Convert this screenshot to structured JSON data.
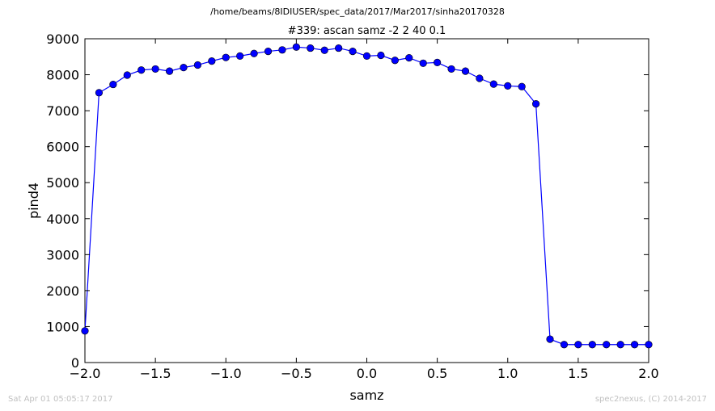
{
  "page": {
    "suptitle": "/home/beams/8IDIUSER/spec_data/2017/Mar2017/sinha20170328",
    "footer_left": "Sat Apr 01 05:05:17 2017",
    "footer_right": "spec2nexus, (C) 2014-2017"
  },
  "chart_data": {
    "type": "line",
    "title": "#339: ascan  samz -2 2  40 0.1",
    "xlabel": "samz",
    "ylabel": "pind4",
    "xlim": [
      -2.0,
      2.0
    ],
    "ylim": [
      0,
      9000
    ],
    "xticks": [
      "−2.0",
      "−1.5",
      "−1.0",
      "−0.5",
      "0.0",
      "0.5",
      "1.0",
      "1.5",
      "2.0"
    ],
    "yticks": [
      "0",
      "1000",
      "2000",
      "3000",
      "4000",
      "5000",
      "6000",
      "7000",
      "8000",
      "9000"
    ],
    "grid": false,
    "marker": "circle",
    "color": "#0000ff",
    "series": [
      {
        "x": [
          -2.0,
          -1.9,
          -1.8,
          -1.7,
          -1.6,
          -1.5,
          -1.4,
          -1.3,
          -1.2,
          -1.1,
          -1.0,
          -0.9,
          -0.8,
          -0.7,
          -0.6,
          -0.5,
          -0.4,
          -0.3,
          -0.2,
          -0.1,
          0.0,
          0.1,
          0.2,
          0.3,
          0.4,
          0.5,
          0.6,
          0.7,
          0.8,
          0.9,
          1.0,
          1.1,
          1.2,
          1.3,
          1.4,
          1.5,
          1.6,
          1.7,
          1.8,
          1.9,
          2.0
        ],
        "y": [
          880,
          7500,
          7730,
          7990,
          8130,
          8160,
          8100,
          8200,
          8270,
          8380,
          8480,
          8520,
          8590,
          8650,
          8690,
          8770,
          8740,
          8680,
          8740,
          8650,
          8520,
          8540,
          8400,
          8470,
          8320,
          8340,
          8160,
          8100,
          7900,
          7740,
          7690,
          7670,
          7190,
          650,
          500,
          500,
          500,
          500,
          500,
          500,
          500
        ]
      }
    ]
  }
}
